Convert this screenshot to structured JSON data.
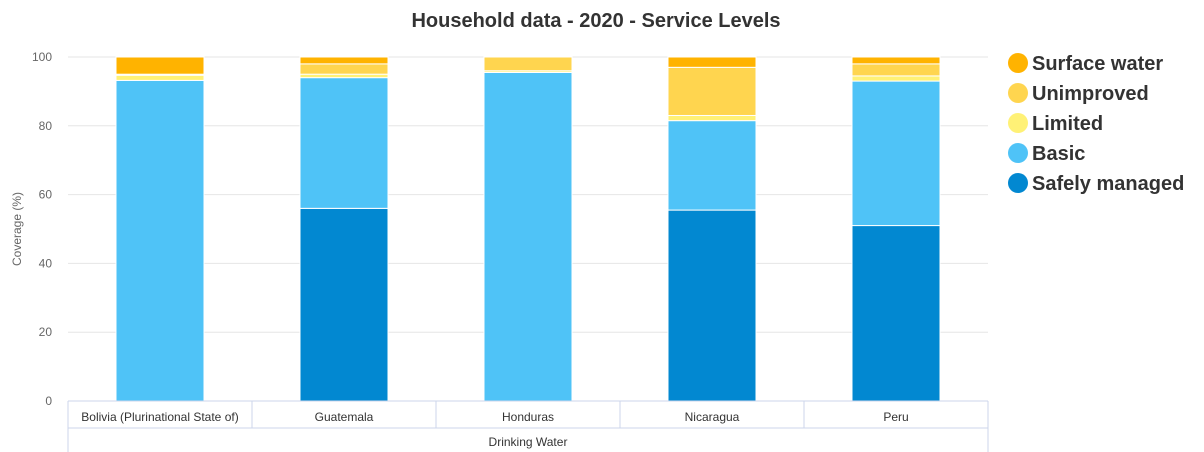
{
  "chart_data": {
    "type": "bar",
    "stacked": true,
    "title": "Household data - 2020 - Service Levels",
    "ylabel": "Coverage (%)",
    "ylim": [
      0,
      100
    ],
    "yticks": [
      0,
      20,
      40,
      60,
      80,
      100
    ],
    "grid": true,
    "legend_position": "right",
    "group_label": "Drinking Water",
    "categories": [
      "Bolivia (Plurinational State of)",
      "Guatemala",
      "Honduras",
      "Nicaragua",
      "Peru"
    ],
    "series": [
      {
        "name": "Safely managed",
        "color": "#0288d1",
        "values": [
          0,
          56,
          0,
          55.5,
          51
        ]
      },
      {
        "name": "Basic",
        "color": "#4fc3f7",
        "values": [
          93.2,
          38,
          95.5,
          26,
          42
        ]
      },
      {
        "name": "Limited",
        "color": "#fff176",
        "values": [
          1.5,
          1,
          0.5,
          1.5,
          1.5
        ]
      },
      {
        "name": "Unimproved",
        "color": "#ffd54f",
        "values": [
          0.3,
          3,
          4,
          14,
          3.5
        ]
      },
      {
        "name": "Surface water",
        "color": "#ffb300",
        "values": [
          5,
          2,
          0,
          3,
          2
        ]
      }
    ],
    "legend_order": [
      "Surface water",
      "Unimproved",
      "Limited",
      "Basic",
      "Safely managed"
    ]
  }
}
